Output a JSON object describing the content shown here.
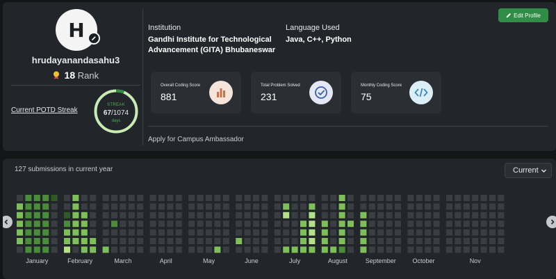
{
  "profile": {
    "avatar_initial": "H",
    "username": "hrudayanandasahu3",
    "rank_value": "18",
    "rank_label": "Rank",
    "potd_label": "Current POTD Streak",
    "streak": {
      "label": "STREAK",
      "current": "67",
      "total": "/1074",
      "unit": "days",
      "progress": 0.062
    }
  },
  "institution": {
    "label": "Institution",
    "value_line1": "Gandhi Institute for Technological",
    "value_line2": "Advancement (GITA) Bhubaneswar"
  },
  "language": {
    "label": "Language Used",
    "value": "Java, C++, Python"
  },
  "edit_profile_label": "Edit Profile",
  "stats": [
    {
      "label": "Overall Coding Score",
      "value": "881",
      "icon": "bar-chart-icon",
      "icon_bg": "#f5e4da",
      "icon_color": "#c8714a"
    },
    {
      "label": "Total Problem Solved",
      "value": "231",
      "icon": "check-circle-icon",
      "icon_bg": "#e4e8f5",
      "icon_color": "#3b5fa8"
    },
    {
      "label": "Monthly Coding Score",
      "value": "75",
      "icon": "code-icon",
      "icon_bg": "#dceff7",
      "icon_color": "#3d87b8"
    }
  ],
  "ambassador_label": "Apply for Campus Ambassador",
  "activity": {
    "title": "127 submissions in current year",
    "year_selected": "Current",
    "months": [
      "January",
      "February",
      "March",
      "April",
      "May",
      "June",
      "July",
      "August",
      "September",
      "October",
      "Nov"
    ],
    "level_colors": [
      "#3a3e43",
      "#2d5a27",
      "#4a8c3a",
      "#7fbf5a",
      "#b4e08a"
    ],
    "weeks": [
      [
        0,
        3,
        3,
        3,
        3,
        3,
        0
      ],
      [
        2,
        2,
        2,
        2,
        2,
        2,
        2
      ],
      [
        2,
        2,
        2,
        2,
        2,
        2,
        2
      ],
      [
        2,
        2,
        2,
        2,
        2,
        2,
        2
      ],
      [
        1,
        0,
        0,
        0,
        0,
        0,
        0
      ],
      [
        0,
        0,
        1,
        2,
        3,
        3,
        4
      ],
      [
        3,
        3,
        3,
        3,
        3,
        3,
        0
      ],
      [
        0,
        0,
        3,
        3,
        3,
        3,
        3
      ],
      [
        0,
        0,
        0,
        0,
        0,
        3,
        3
      ],
      [
        0,
        0,
        0,
        0,
        0,
        0,
        3
      ],
      [
        0,
        0,
        0,
        2,
        0,
        0,
        0
      ],
      [
        0,
        0,
        0,
        0,
        0,
        0,
        0
      ],
      [
        0,
        0,
        0,
        0,
        0,
        0,
        0
      ],
      [
        0,
        0,
        0,
        0,
        0,
        0,
        0
      ],
      [
        0,
        0,
        0,
        0,
        0,
        0,
        0
      ],
      [
        0,
        0,
        0,
        0,
        0,
        0,
        0
      ],
      [
        0,
        0,
        0,
        0,
        0,
        0,
        0
      ],
      [
        0,
        0,
        0,
        0,
        0,
        0,
        0
      ],
      [
        0,
        0,
        0,
        0,
        0,
        0,
        0
      ],
      [
        0,
        0,
        0,
        0,
        0,
        0,
        0
      ],
      [
        0,
        0,
        0,
        0,
        0,
        0,
        0
      ],
      [
        0,
        0,
        0,
        0,
        0,
        0,
        3
      ],
      [
        0,
        0,
        0,
        0,
        0,
        0,
        0
      ],
      [
        0,
        0,
        0,
        0,
        0,
        3,
        0
      ],
      [
        0,
        0,
        0,
        0,
        0,
        0,
        0
      ],
      [
        0,
        0,
        0,
        0,
        0,
        0,
        0
      ],
      [
        0,
        0,
        0,
        0,
        0,
        0,
        0
      ],
      [
        0,
        0,
        0,
        0,
        0,
        0,
        0
      ],
      [
        0,
        3,
        4,
        0,
        0,
        0,
        3
      ],
      [
        0,
        0,
        0,
        0,
        0,
        0,
        3
      ],
      [
        0,
        0,
        0,
        3,
        3,
        3,
        3
      ],
      [
        0,
        3,
        4,
        4,
        4,
        4,
        3
      ],
      [
        0,
        0,
        0,
        3,
        3,
        3,
        3
      ],
      [
        0,
        0,
        0,
        0,
        0,
        0,
        3
      ],
      [
        3,
        3,
        3,
        3,
        3,
        3,
        2
      ],
      [
        0,
        0,
        0,
        3,
        0,
        0,
        0
      ],
      [
        0,
        0,
        3,
        3,
        3,
        3,
        3
      ],
      [
        0,
        0,
        0,
        0,
        0,
        0,
        0
      ],
      [
        0,
        0,
        0,
        0,
        0,
        0,
        0
      ],
      [
        0,
        0,
        0,
        0,
        0,
        0,
        0
      ],
      [
        0,
        0,
        0,
        0,
        0,
        0,
        0
      ],
      [
        0,
        0,
        0,
        0,
        0,
        0,
        0
      ],
      [
        0,
        0,
        0,
        0,
        0,
        0,
        0
      ],
      [
        0,
        0,
        0,
        0,
        0,
        0,
        0
      ],
      [
        0,
        0,
        0,
        0,
        0,
        0,
        0
      ],
      [
        0,
        0,
        0,
        0,
        0,
        0,
        0
      ],
      [
        0,
        0,
        0,
        0,
        0,
        0,
        0
      ],
      [
        0,
        0,
        0,
        0,
        0,
        0,
        0
      ],
      [
        0,
        0,
        0,
        0,
        0,
        0,
        0
      ],
      [
        0,
        0,
        0,
        0,
        0,
        0,
        0
      ],
      [
        0,
        0,
        0,
        0,
        0,
        0,
        0
      ],
      [
        0,
        0,
        0,
        0,
        0,
        0,
        0
      ]
    ]
  }
}
